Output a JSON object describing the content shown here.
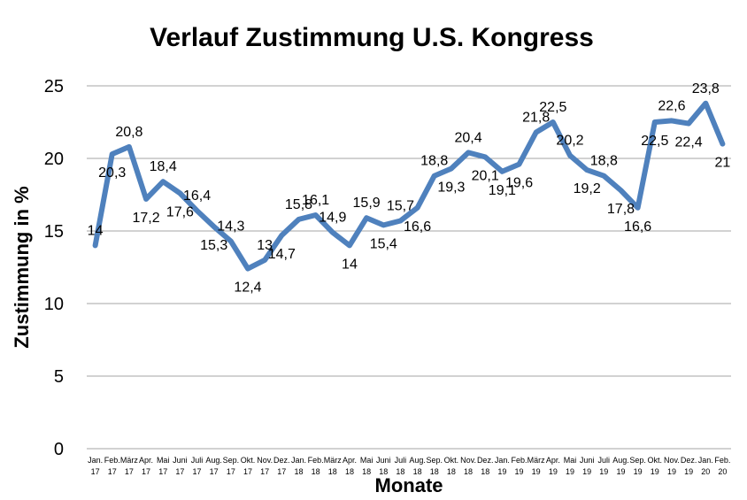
{
  "chart_data": {
    "type": "line",
    "title": "Verlauf Zustimmung U.S. Kongress",
    "xlabel": "Monate",
    "ylabel": "Zustimmung in %",
    "ylim": [
      0,
      25
    ],
    "yticks": [
      "0",
      "5",
      "10",
      "15",
      "20",
      "25"
    ],
    "grid": true,
    "legend": "none",
    "series_color": "#4f81bd",
    "categories": [
      [
        "Jan.",
        "17"
      ],
      [
        "Feb.",
        "17"
      ],
      [
        "März",
        "17"
      ],
      [
        "Apr.",
        "17"
      ],
      [
        "Mai",
        "17"
      ],
      [
        "Juni",
        "17"
      ],
      [
        "Juli",
        "17"
      ],
      [
        "Aug.",
        "17"
      ],
      [
        "Sep.",
        "17"
      ],
      [
        "Okt.",
        "17"
      ],
      [
        "Nov.",
        "17"
      ],
      [
        "Dez.",
        "17"
      ],
      [
        "Jan.",
        "18"
      ],
      [
        "Feb.",
        "18"
      ],
      [
        "März",
        "18"
      ],
      [
        "Apr.",
        "18"
      ],
      [
        "Mai",
        "18"
      ],
      [
        "Juni",
        "18"
      ],
      [
        "Juli",
        "18"
      ],
      [
        "Aug.",
        "18"
      ],
      [
        "Sep.",
        "18"
      ],
      [
        "Okt.",
        "18"
      ],
      [
        "Nov.",
        "18"
      ],
      [
        "Dez.",
        "18"
      ],
      [
        "Jan.",
        "19"
      ],
      [
        "Feb.",
        "19"
      ],
      [
        "März",
        "19"
      ],
      [
        "Apr.",
        "19"
      ],
      [
        "Mai",
        "19"
      ],
      [
        "Juni",
        "19"
      ],
      [
        "Juli",
        "19"
      ],
      [
        "Aug.",
        "19"
      ],
      [
        "Sep.",
        "19"
      ],
      [
        "Okt.",
        "19"
      ],
      [
        "Nov.",
        "19"
      ],
      [
        "Dez.",
        "19"
      ],
      [
        "Jan.",
        "20"
      ],
      [
        "Feb.",
        "20"
      ]
    ],
    "values": [
      14,
      20.3,
      20.8,
      17.2,
      18.4,
      17.6,
      16.4,
      15.3,
      14.3,
      12.4,
      13,
      14.7,
      15.8,
      16.1,
      14.9,
      14,
      15.9,
      15.4,
      15.7,
      16.6,
      18.8,
      19.3,
      20.4,
      20.1,
      19.1,
      19.6,
      21.8,
      22.5,
      20.2,
      19.2,
      18.8,
      17.8,
      16.6,
      22.5,
      22.6,
      22.4,
      23.8,
      21
    ],
    "data_labels": [
      "14",
      "20,3",
      "20,8",
      "17,2",
      "18,4",
      "17,6",
      "16,4",
      "15,3",
      "14,3",
      "12,4",
      "13",
      "14,7",
      "15,8",
      "16,1",
      "14,9",
      "14",
      "15,9",
      "15,4",
      "15,7",
      "16,6",
      "18,8",
      "19,3",
      "20,4",
      "20,1",
      "19,1",
      "19,6",
      "21,8",
      "22,5",
      "20,2",
      "19,2",
      "18,8",
      "17,8",
      "16,6",
      "22,5",
      "22,6",
      "22,4",
      "23,8",
      "21"
    ]
  }
}
